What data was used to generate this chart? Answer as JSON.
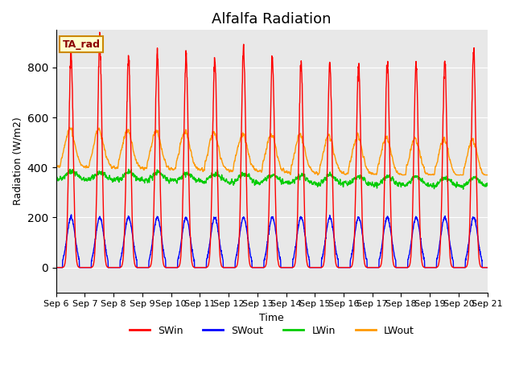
{
  "title": "Alfalfa Radiation",
  "xlabel": "Time",
  "ylabel": "Radiation (W/m2)",
  "ylim": [
    -100,
    950
  ],
  "background_color": "#e8e8e8",
  "legend_labels": [
    "SWin",
    "SWout",
    "LWin",
    "LWout"
  ],
  "legend_colors": [
    "#ff0000",
    "#0000ff",
    "#00cc00",
    "#ff9900"
  ],
  "annotation_text": "TA_rad",
  "x_tick_labels": [
    "Sep 6",
    "Sep 7",
    "Sep 8",
    "Sep 9",
    "Sep 10",
    "Sep 11",
    "Sep 12",
    "Sep 13",
    "Sep 14",
    "Sep 15",
    "Sep 16",
    "Sep 17",
    "Sep 18",
    "Sep 19",
    "Sep 20",
    "Sep 21"
  ],
  "title_fontsize": 13,
  "axis_fontsize": 9,
  "tick_fontsize": 8
}
